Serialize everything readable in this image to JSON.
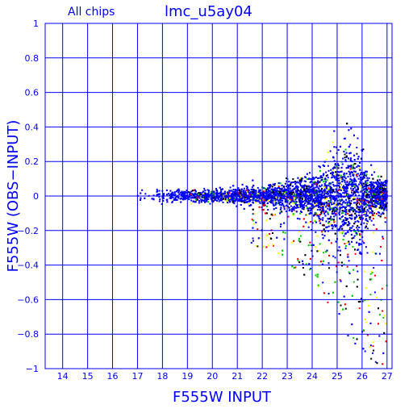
{
  "chart_data": {
    "type": "scatter",
    "subtitle": "All chips",
    "title": "lmc_u5ay04",
    "xlabel": "F555W INPUT",
    "ylabel": "F555W (OBS−INPUT)",
    "xlim": [
      13.3,
      27.2
    ],
    "ylim": [
      -1,
      1
    ],
    "x_ticks": [
      14,
      15,
      16,
      17,
      18,
      19,
      20,
      21,
      22,
      23,
      24,
      25,
      26,
      27
    ],
    "y_ticks": [
      -1,
      -0.8,
      -0.6,
      -0.4,
      -0.2,
      0,
      0.2,
      0.4,
      0.6,
      0.8,
      1
    ],
    "y_tick_labels": [
      "−1",
      "−0.8",
      "−0.6",
      "−0.4",
      "−0.2",
      "0",
      "0.2",
      "0.4",
      "0.6",
      "0.8",
      "1"
    ],
    "grid": true,
    "series_colors": [
      "#0000ff",
      "#000000",
      "#00cc00",
      "#ff0000",
      "#ffff00"
    ],
    "point_density": {
      "x_range": [
        16.9,
        27.0
      ],
      "core_color": "#0000ff",
      "envelope_points": [
        {
          "x": 17,
          "y_spread": 0.05
        },
        {
          "x": 18,
          "y_spread": 0.04
        },
        {
          "x": 20,
          "y_spread": 0.04
        },
        {
          "x": 22,
          "y_spread": 0.06
        },
        {
          "x": 24,
          "y_spread": 0.12
        },
        {
          "x": 25,
          "y_spread": 0.25
        },
        {
          "x": 25.5,
          "y_spread": 0.35
        },
        {
          "x": 26,
          "y_spread": 0.25
        },
        {
          "x": 26.5,
          "y_spread": 0.1
        }
      ],
      "negative_tail": [
        {
          "x": 22,
          "y_min": -0.3
        },
        {
          "x": 24,
          "y_min": -0.5
        },
        {
          "x": 25,
          "y_min": -0.7
        },
        {
          "x": 26,
          "y_min": -0.95
        },
        {
          "x": 27,
          "y_min": -1.0
        }
      ]
    }
  }
}
